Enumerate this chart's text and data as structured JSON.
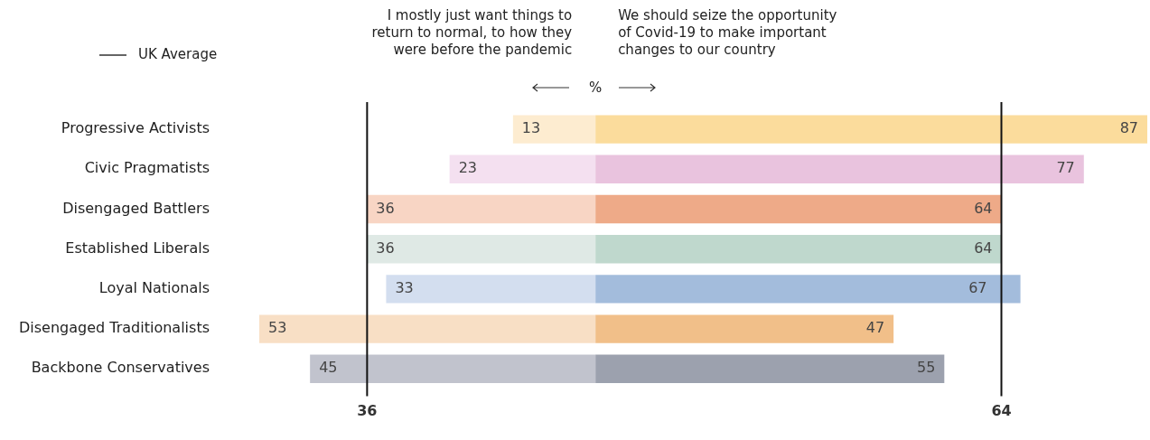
{
  "chart_data": {
    "type": "bar",
    "orientation": "horizontal",
    "categories": [
      "Progressive Activists",
      "Civic Pragmatists",
      "Disengaged Battlers",
      "Established Liberals",
      "Loyal Nationals",
      "Disengaged Traditionalists",
      "Backbone Conservatives"
    ],
    "series": [
      {
        "values": [
          13,
          23,
          36,
          36,
          33,
          53,
          45
        ],
        "base": [
          -13,
          -23,
          -36,
          -36,
          -33,
          -53,
          -45
        ],
        "colors": [
          "#fdecd0",
          "#f4e0f0",
          "#f8d5c4",
          "#dfe9e5",
          "#d3deef",
          "#f8dfc5",
          "#c1c3cd"
        ]
      },
      {
        "values": [
          87,
          77,
          64,
          64,
          67,
          47,
          55
        ],
        "colors": [
          "#fbdc9c",
          "#e9c3de",
          "#eeaa88",
          "#bfd8cd",
          "#a3bcdc",
          "#f1bf89",
          "#9ca1ae"
        ]
      }
    ],
    "xlim": [
      -53,
      87
    ],
    "xticks": [
      {
        "value": -36,
        "label": "36"
      },
      64
    ],
    "xlabel": "%",
    "ref_lines": [
      {
        "axis": "x",
        "value": -36,
        "label": "UK Average",
        "color": "#111111"
      },
      {
        "axis": "x",
        "value": 64,
        "color": "#111111"
      }
    ],
    "legend": "top left",
    "data_labels": true,
    "annotations": [
      "I mostly just want things to return to normal, to how they were before the pandemic",
      "We should seize the opportunity of Covid-19 to make important changes to our country"
    ]
  }
}
